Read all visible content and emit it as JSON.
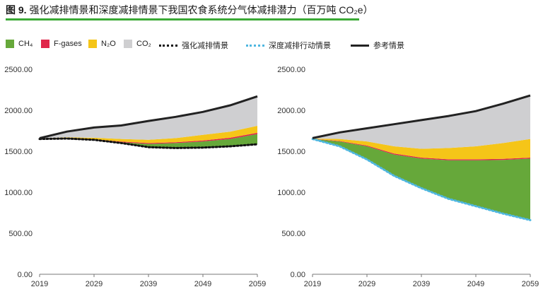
{
  "figure": {
    "label": "图 9.",
    "title": "强化减排情景和深度减排情景下我国农食系统分气体减排潜力（百万吨 CO₂e）"
  },
  "colors": {
    "ch4": "#66a83a",
    "fgases": "#e0264a",
    "n2o": "#f5c518",
    "co2": "#cfcfd1",
    "enhanced_line": "#111111",
    "deep_line": "#4fb7e0",
    "reference_line": "#222222",
    "title_rule": "#3aa935"
  },
  "legend": {
    "ch4": "CH₄",
    "fgases": "F-gases",
    "n2o": "N₂O",
    "co2": "CO₂",
    "enhanced": "强化减排情景",
    "deep": "深度减排行动情景",
    "reference": "参考情景"
  },
  "chart_data": [
    {
      "type": "area",
      "x": [
        2019,
        2024,
        2029,
        2034,
        2039,
        2044,
        2049,
        2054,
        2059
      ],
      "xticks": [
        2019,
        2029,
        2039,
        2049,
        2059
      ],
      "yticks": [
        "0.00",
        "500.00",
        "1000.00",
        "1500.00",
        "2000.00",
        "2500.00"
      ],
      "ylim": [
        0,
        2500
      ],
      "series": [
        {
          "name": "CH₄",
          "kind": "band",
          "lower": [
            1650,
            1655,
            1640,
            1600,
            1550,
            1540,
            1545,
            1560,
            1585
          ],
          "upper": [
            1650,
            1655,
            1640,
            1610,
            1590,
            1600,
            1620,
            1650,
            1710
          ]
        },
        {
          "name": "F-gases",
          "kind": "band",
          "lower": [
            1650,
            1655,
            1640,
            1610,
            1590,
            1600,
            1620,
            1650,
            1710
          ],
          "upper": [
            1652,
            1658,
            1645,
            1618,
            1600,
            1610,
            1632,
            1665,
            1725
          ]
        },
        {
          "name": "N₂O",
          "kind": "band",
          "lower": [
            1652,
            1658,
            1645,
            1618,
            1600,
            1610,
            1632,
            1665,
            1725
          ],
          "upper": [
            1655,
            1670,
            1665,
            1650,
            1640,
            1660,
            1700,
            1740,
            1810
          ]
        },
        {
          "name": "CO₂",
          "kind": "band",
          "lower": [
            1655,
            1670,
            1665,
            1650,
            1640,
            1660,
            1700,
            1740,
            1810
          ],
          "upper": [
            1660,
            1740,
            1790,
            1815,
            1870,
            1920,
            1980,
            2060,
            2170
          ]
        },
        {
          "name": "强化减排情景",
          "kind": "line",
          "values": [
            1650,
            1655,
            1640,
            1600,
            1550,
            1540,
            1545,
            1560,
            1585
          ]
        },
        {
          "name": "参考情景",
          "kind": "line",
          "values": [
            1660,
            1740,
            1790,
            1815,
            1870,
            1920,
            1980,
            2060,
            2170
          ]
        }
      ]
    },
    {
      "type": "area",
      "x": [
        2019,
        2024,
        2029,
        2034,
        2039,
        2044,
        2049,
        2054,
        2059
      ],
      "xticks": [
        2019,
        2029,
        2039,
        2049,
        2059
      ],
      "yticks": [
        "0.00",
        "500.00",
        "1000.00",
        "1500.00",
        "2000.00",
        "2500.00"
      ],
      "ylim": [
        0,
        2500
      ],
      "series": [
        {
          "name": "CH₄",
          "kind": "band",
          "lower": [
            1650,
            1560,
            1400,
            1200,
            1050,
            920,
            830,
            740,
            660
          ],
          "upper": [
            1650,
            1620,
            1560,
            1460,
            1410,
            1390,
            1390,
            1395,
            1410
          ]
        },
        {
          "name": "F-gases",
          "kind": "band",
          "lower": [
            1650,
            1620,
            1560,
            1460,
            1410,
            1390,
            1390,
            1395,
            1410
          ],
          "upper": [
            1652,
            1625,
            1570,
            1472,
            1422,
            1402,
            1402,
            1408,
            1422
          ]
        },
        {
          "name": "N₂O",
          "kind": "band",
          "lower": [
            1652,
            1625,
            1570,
            1472,
            1422,
            1402,
            1402,
            1408,
            1422
          ],
          "upper": [
            1655,
            1650,
            1620,
            1560,
            1530,
            1540,
            1560,
            1600,
            1650
          ]
        },
        {
          "name": "CO₂",
          "kind": "band",
          "lower": [
            1655,
            1650,
            1620,
            1560,
            1530,
            1540,
            1560,
            1600,
            1650
          ],
          "upper": [
            1660,
            1730,
            1780,
            1830,
            1880,
            1930,
            1990,
            2080,
            2180
          ]
        },
        {
          "name": "深度减排行动情景",
          "kind": "line",
          "values": [
            1650,
            1560,
            1400,
            1200,
            1050,
            920,
            830,
            740,
            660
          ]
        },
        {
          "name": "参考情景",
          "kind": "line",
          "values": [
            1660,
            1730,
            1780,
            1830,
            1880,
            1930,
            1990,
            2080,
            2180
          ]
        }
      ]
    }
  ]
}
